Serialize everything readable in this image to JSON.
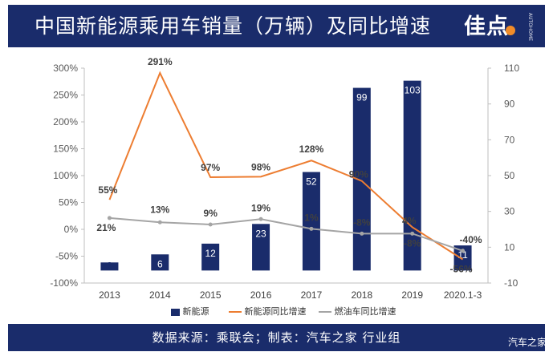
{
  "header": {
    "title": "中国新能源乘用车销量（万辆）及同比增速",
    "logo_text": "佳点",
    "logo_side": "AUTOHOME"
  },
  "footer": {
    "source": "数据来源：乘联会；制表：汽车之家 行业组"
  },
  "watermark": "汽车之家",
  "colors": {
    "bar": "#1a2c6b",
    "line_nev": "#ed7d31",
    "line_fuel": "#a5a5a5",
    "header_bg": "#1a2c6b"
  },
  "chart_data": {
    "type": "bar+line",
    "categories": [
      "2013",
      "2014",
      "2015",
      "2016",
      "2017",
      "2018",
      "2019",
      "2020.1-3"
    ],
    "left_axis": {
      "min": -100,
      "max": 300,
      "step": 50,
      "ticks": [
        "-100%",
        "-50%",
        "0%",
        "50%",
        "100%",
        "150%",
        "200%",
        "250%",
        "300%"
      ]
    },
    "right_axis": {
      "min": -10,
      "max": 110,
      "step": 20,
      "ticks": [
        "-10",
        "10",
        "30",
        "50",
        "70",
        "90",
        "110"
      ]
    },
    "series": [
      {
        "name": "新能源",
        "type": "bar",
        "axis": "right",
        "values": [
          1.5,
          6,
          12,
          23,
          52,
          99,
          103,
          11
        ],
        "labels": [
          "2",
          "6",
          "12",
          "23",
          "52",
          "99",
          "103",
          "11"
        ]
      },
      {
        "name": "新能源同比增速",
        "type": "line",
        "axis": "left",
        "values": [
          55,
          291,
          97,
          98,
          128,
          90,
          4,
          -56
        ],
        "labels": [
          "55%",
          "291%",
          "97%",
          "98%",
          "128%",
          "90%",
          "4%",
          "-56%"
        ]
      },
      {
        "name": "燃油车同比增速",
        "type": "line",
        "axis": "left",
        "values": [
          21,
          13,
          9,
          19,
          1,
          -8,
          -8,
          -40
        ],
        "labels": [
          "21%",
          "13%",
          "9%",
          "19%",
          "1%",
          "-8%",
          "-8%",
          "-40%"
        ]
      }
    ]
  }
}
